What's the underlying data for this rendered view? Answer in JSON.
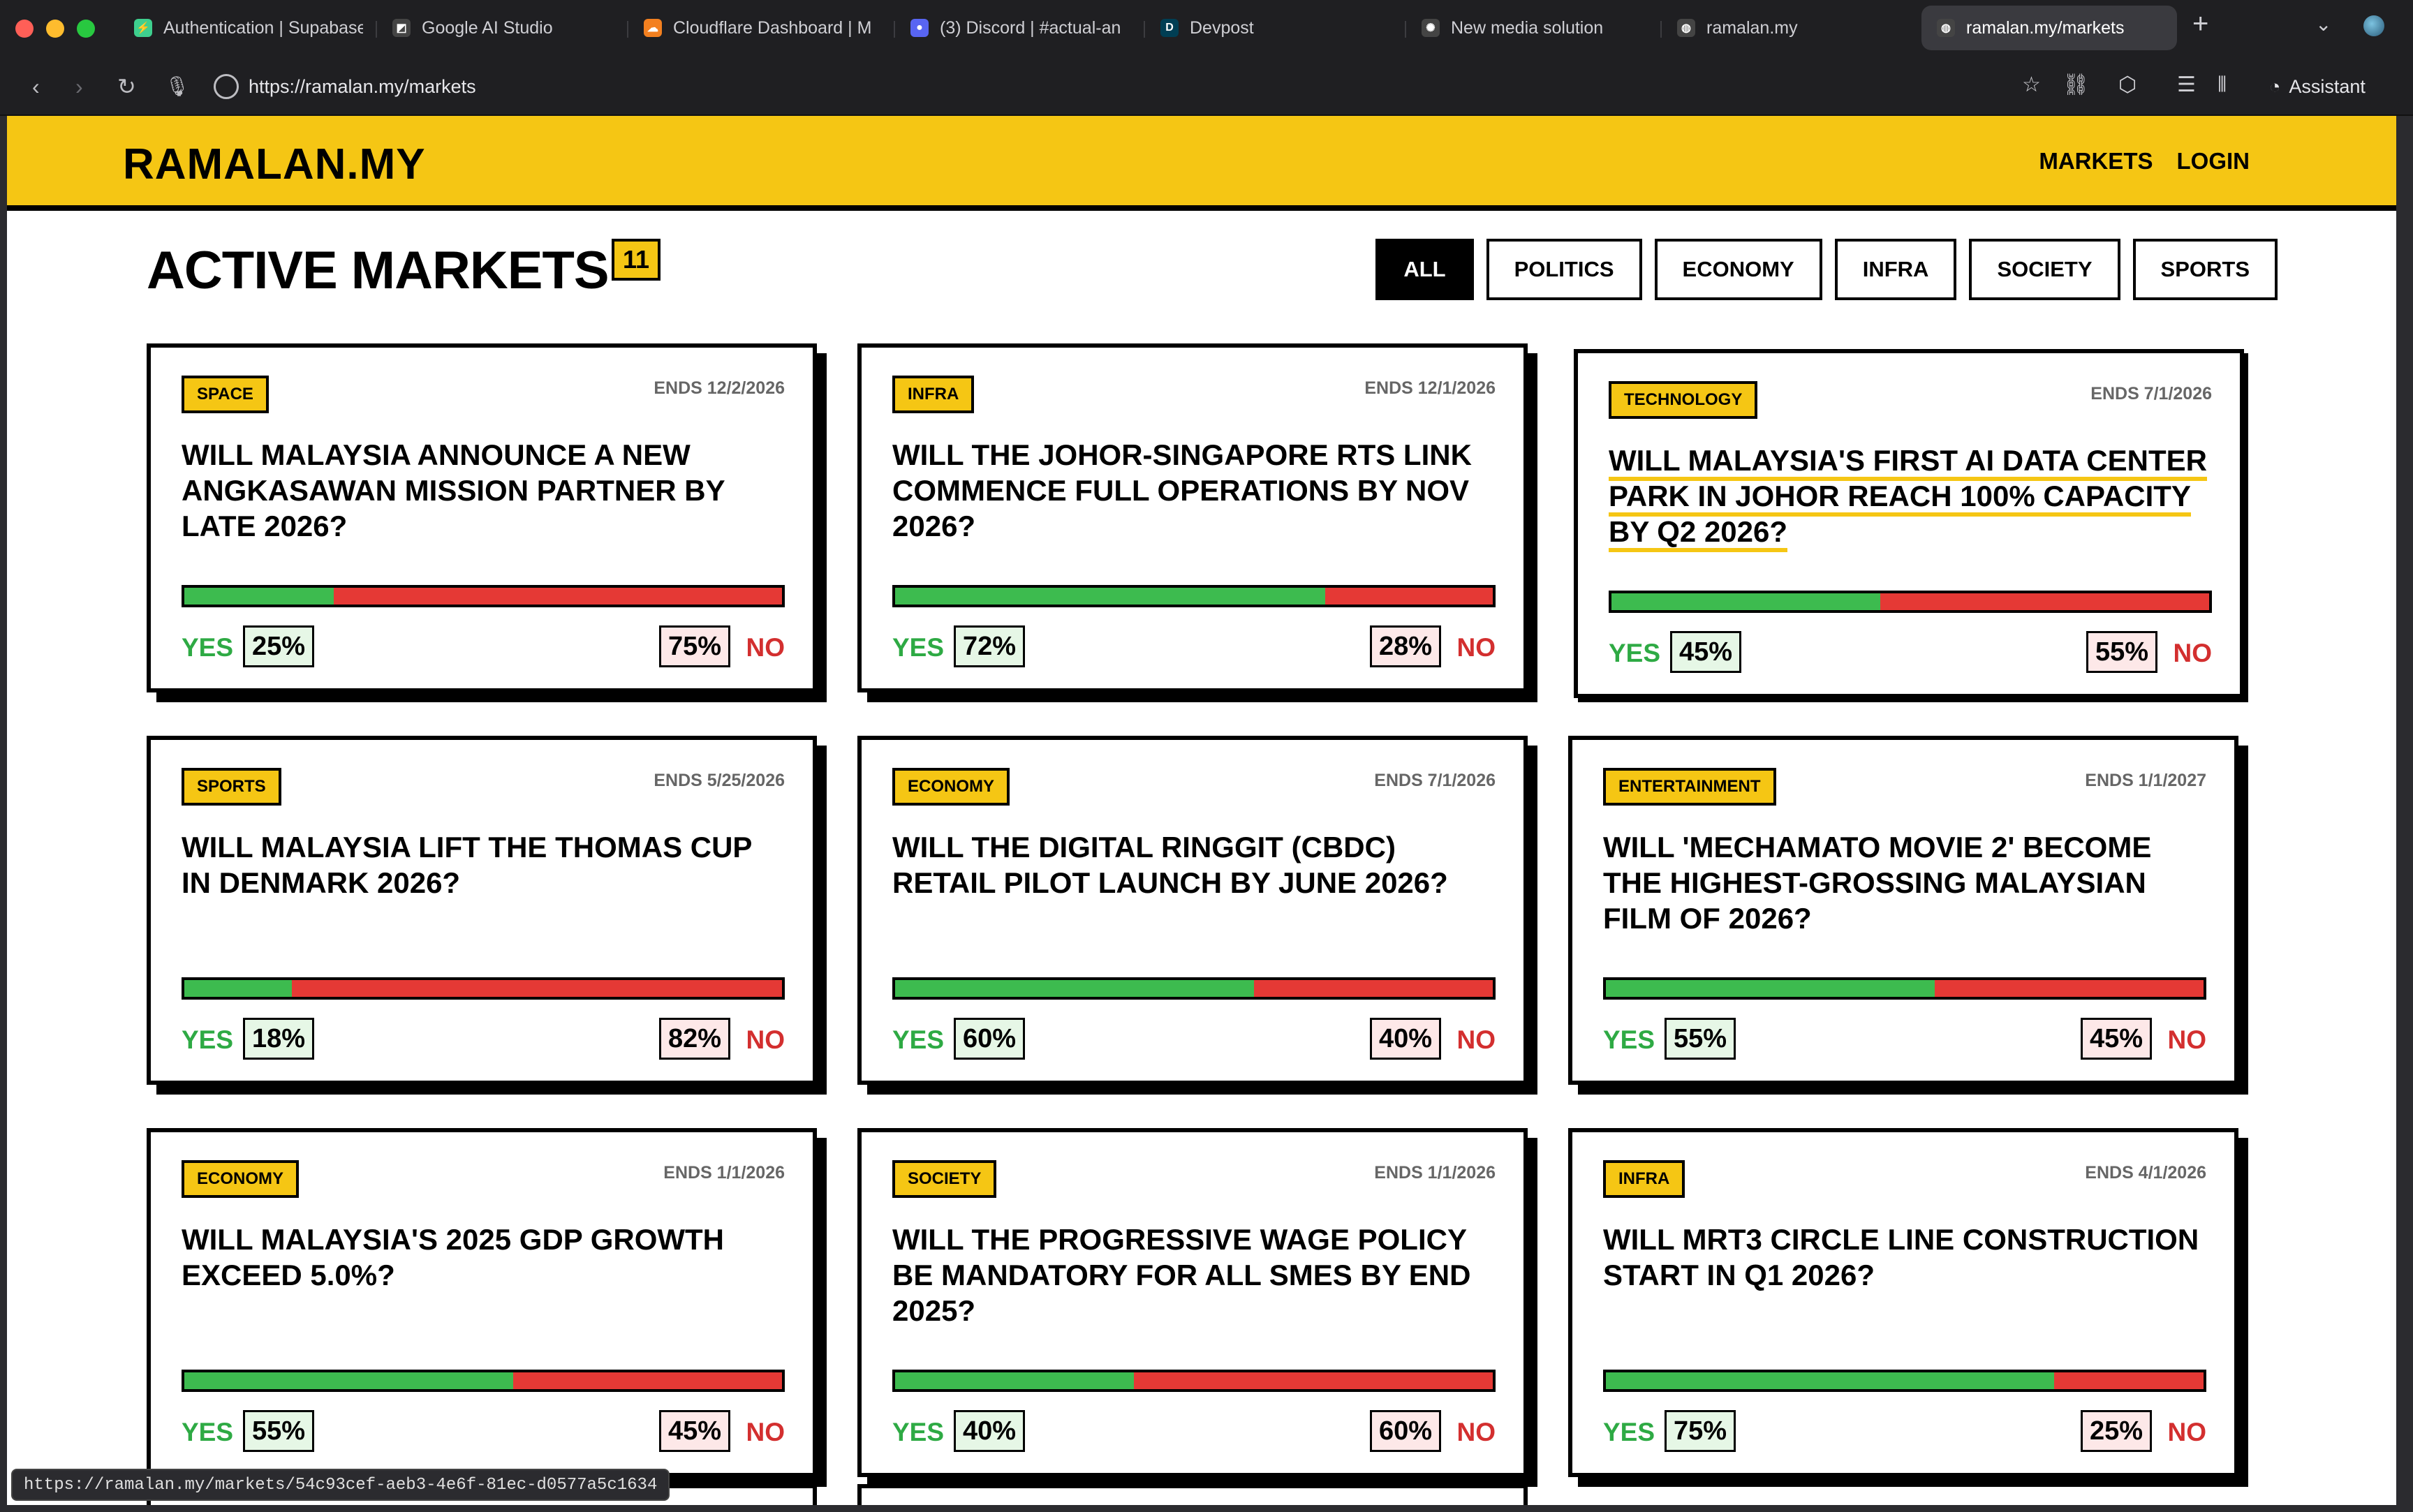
{
  "browser": {
    "traffic_colors": [
      "#ff5f57",
      "#febc2e",
      "#28c840"
    ],
    "tabs": [
      {
        "label": "Authentication | Supabase",
        "icon": "supabase-icon",
        "color": "#3ecf8e",
        "glyph": "⚡"
      },
      {
        "label": "Google AI Studio",
        "icon": "ai-studio-icon",
        "color": "#444",
        "glyph": "◩"
      },
      {
        "label": "Cloudflare Dashboard | M",
        "icon": "cloudflare-icon",
        "color": "#f38020",
        "glyph": "☁"
      },
      {
        "label": "(3) Discord | #actual-an",
        "icon": "discord-icon",
        "color": "#5865f2",
        "glyph": "●"
      },
      {
        "label": "Devpost",
        "icon": "devpost-icon",
        "color": "#003e54",
        "glyph": "D"
      },
      {
        "label": "New media solution",
        "icon": "openai-icon",
        "color": "#444",
        "glyph": "✺"
      },
      {
        "label": "ramalan.my",
        "icon": "globe-icon",
        "color": "#444",
        "glyph": "◍"
      },
      {
        "label": "ramalan.my/markets",
        "icon": "globe-icon",
        "color": "#444",
        "glyph": "◍"
      }
    ],
    "url": "https://ramalan.my/markets",
    "assistant_label": "Assistant",
    "status_url": "https://ramalan.my/markets/54c93cef-aeb3-4e6f-81ec-d0577a5c1634"
  },
  "site": {
    "logo": "RAMALAN.MY",
    "nav": [
      "MARKETS",
      "LOGIN"
    ]
  },
  "page": {
    "title": "ACTIVE MARKETS",
    "count": "11",
    "filters": [
      "ALL",
      "POLITICS",
      "ECONOMY",
      "INFRA",
      "SOCIETY",
      "SPORTS"
    ],
    "active_filter": "ALL"
  },
  "colors": {
    "accent": "#f5c614",
    "yes": "#3dbb4f",
    "no": "#e53935"
  },
  "markets": [
    {
      "tag": "SPACE",
      "ends": "ENDS 12/2/2026",
      "question": "WILL MALAYSIA ANNOUNCE A NEW ANGKASAWAN MISSION PARTNER BY LATE 2026?",
      "yes_label": "YES",
      "yes": "25%",
      "no": "75%",
      "no_label": "NO",
      "yes_value": 25
    },
    {
      "tag": "INFRA",
      "ends": "ENDS 12/1/2026",
      "question": "WILL THE JOHOR-SINGAPORE RTS LINK COMMENCE FULL OPERATIONS BY NOV 2026?",
      "yes_label": "YES",
      "yes": "72%",
      "no": "28%",
      "no_label": "NO",
      "yes_value": 72
    },
    {
      "tag": "TECHNOLOGY",
      "ends": "ENDS 7/1/2026",
      "question": "WILL MALAYSIA'S FIRST AI DATA CENTER PARK IN JOHOR REACH 100% CAPACITY BY Q2 2026?",
      "yes_label": "YES",
      "yes": "45%",
      "no": "55%",
      "no_label": "NO",
      "yes_value": 45,
      "hover": true
    },
    {
      "tag": "SPORTS",
      "ends": "ENDS 5/25/2026",
      "question": "WILL MALAYSIA LIFT THE THOMAS CUP IN DENMARK 2026?",
      "yes_label": "YES",
      "yes": "18%",
      "no": "82%",
      "no_label": "NO",
      "yes_value": 18
    },
    {
      "tag": "ECONOMY",
      "ends": "ENDS 7/1/2026",
      "question": "WILL THE DIGITAL RINGGIT (CBDC) RETAIL PILOT LAUNCH BY JUNE 2026?",
      "yes_label": "YES",
      "yes": "60%",
      "no": "40%",
      "no_label": "NO",
      "yes_value": 60
    },
    {
      "tag": "ENTERTAINMENT",
      "ends": "ENDS 1/1/2027",
      "question": "WILL 'MECHAMATO MOVIE 2' BECOME THE HIGHEST-GROSSING MALAYSIAN FILM OF 2026?",
      "yes_label": "YES",
      "yes": "55%",
      "no": "45%",
      "no_label": "NO",
      "yes_value": 55
    },
    {
      "tag": "ECONOMY",
      "ends": "ENDS 1/1/2026",
      "question": "WILL MALAYSIA'S 2025 GDP GROWTH EXCEED 5.0%?",
      "yes_label": "YES",
      "yes": "55%",
      "no": "45%",
      "no_label": "NO",
      "yes_value": 55
    },
    {
      "tag": "SOCIETY",
      "ends": "ENDS 1/1/2026",
      "question": "WILL THE PROGRESSIVE WAGE POLICY BE MANDATORY FOR ALL SMES BY END 2025?",
      "yes_label": "YES",
      "yes": "40%",
      "no": "60%",
      "no_label": "NO",
      "yes_value": 40
    },
    {
      "tag": "INFRA",
      "ends": "ENDS 4/1/2026",
      "question": "WILL MRT3 CIRCLE LINE CONSTRUCTION START IN Q1 2026?",
      "yes_label": "YES",
      "yes": "75%",
      "no": "25%",
      "no_label": "NO",
      "yes_value": 75
    }
  ]
}
